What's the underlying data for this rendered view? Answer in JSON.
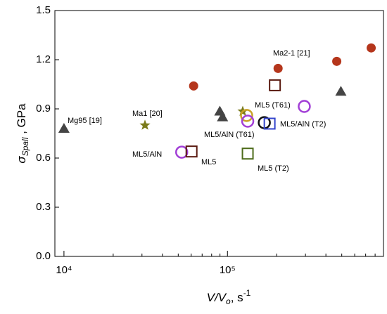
{
  "chart_data": {
    "type": "scatter",
    "log_x": true,
    "y_label": {
      "symbol": "σ",
      "subscript": "Spall",
      "rest": " , GPa"
    },
    "x_label": {
      "main": "V/V",
      "subscript": "o",
      "unit": ", s",
      "superscript": "-1"
    },
    "xlim": [
      8800,
      900000
    ],
    "ylim": [
      0,
      1.5
    ],
    "xticks": [
      {
        "value": 10000,
        "label": "10⁴"
      },
      {
        "value": 100000,
        "label": "10⁵"
      }
    ],
    "xminorticks": [
      20000,
      30000,
      40000,
      50000,
      60000,
      70000,
      80000,
      90000,
      200000,
      300000,
      400000,
      500000,
      600000,
      700000,
      800000,
      900000
    ],
    "yticks": [
      {
        "value": 0,
        "label": "0.0"
      },
      0.3,
      0.6,
      0.9,
      1.2,
      1.5
    ],
    "series": [
      {
        "name": "Mg95 [19]",
        "marker": "triangle",
        "color": "#444444",
        "x": [
          10000,
          89800,
          93300,
          494000
        ],
        "values": [
          0.78,
          0.885,
          0.85,
          1.006
        ]
      },
      {
        "name": "Ma1 [20]",
        "marker": "star",
        "color": "#7a7a1a",
        "x": [
          31300,
          124000
        ],
        "values": [
          0.8,
          0.885
        ]
      },
      {
        "name": "Ma2-1 [21]",
        "marker": "circle",
        "color": "#b5361c",
        "x": [
          62100,
          204000,
          466000,
          757000
        ],
        "values": [
          1.04,
          1.147,
          1.19,
          1.272
        ]
      },
      {
        "name": "ML5/AlN",
        "marker": "open-circle",
        "color": "#a23fd6",
        "x": [
          52500
        ],
        "values": [
          0.636
        ]
      },
      {
        "name": "ML5",
        "marker": "open-square",
        "color": "#5a1a10",
        "x": [
          60300,
          195000
        ],
        "values": [
          0.64,
          1.044
        ]
      },
      {
        "name": "ML5/AlN (T61)",
        "marker": "open-circle",
        "color": "#c9a227",
        "x": [
          131000
        ],
        "values": [
          0.86
        ]
      },
      {
        "name": "ML5 (T61)",
        "marker": "open-circle",
        "color": "#a23fd6",
        "x": [
          295000,
          133000
        ],
        "values": [
          0.915,
          0.825
        ]
      },
      {
        "name": "ML5 (T2)",
        "marker": "open-square",
        "color": "#4d6b1a",
        "x": [
          133000
        ],
        "values": [
          0.627
        ]
      },
      {
        "name": "ML5/AlN (T2)",
        "marker": "open-circle",
        "color": "#111111",
        "x": [
          168000
        ],
        "values": [
          0.816
        ]
      },
      {
        "marker": "open-square",
        "color": "#3344cc",
        "x": [
          181000
        ],
        "values": [
          0.81
        ]
      }
    ]
  }
}
